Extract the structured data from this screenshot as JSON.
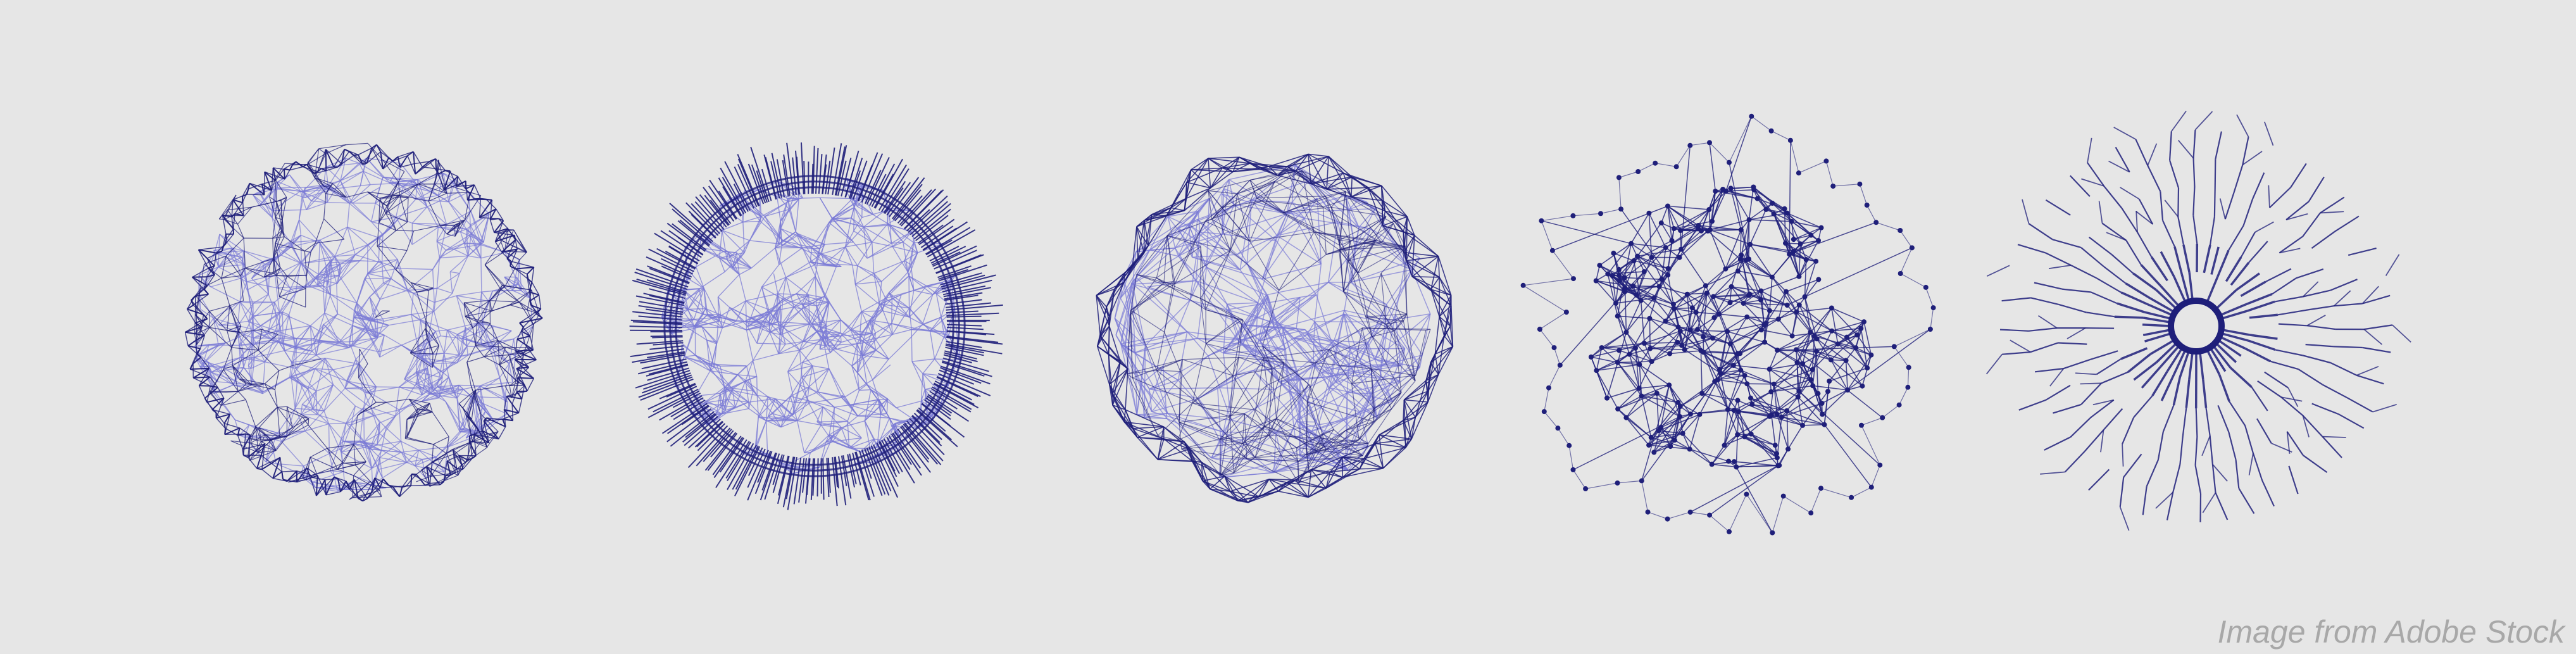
{
  "watermark": "Image from Adobe Stock",
  "colors": {
    "background": "#e6e6e6",
    "line_dark": "#1f1f7a",
    "line_light": "#7a7ad6",
    "watermark": "#a8a8a8"
  },
  "spheres": [
    {
      "name": "wireframe-sphere"
    },
    {
      "name": "spiky-sphere"
    },
    {
      "name": "polygonal-sphere"
    },
    {
      "name": "node-network-sphere"
    },
    {
      "name": "branching-radial-sphere"
    }
  ]
}
